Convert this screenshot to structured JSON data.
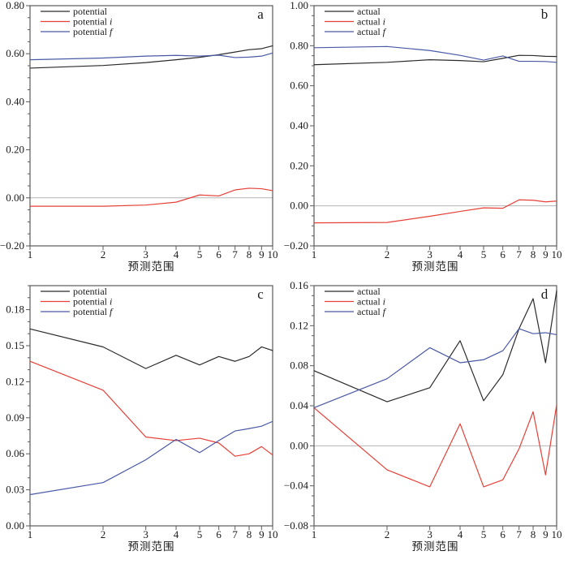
{
  "figure": {
    "xlabel": "预测范围",
    "x_tick_labels": [
      "1",
      "2",
      "3",
      "4",
      "5",
      "6",
      "7",
      "8",
      "9",
      "10"
    ]
  },
  "colors": {
    "black": "#2b2b2b",
    "red": "#e64037",
    "blue": "#4a59a6",
    "axis": "#5a5a5a",
    "tick_label": "#1a1a1a",
    "zero_line": "#b4b4b4",
    "background": "#ffffff"
  },
  "chart_data": [
    {
      "type": "line",
      "panel_label": "a",
      "xlabel": "预测范围",
      "x_scale": "log10",
      "x": [
        1,
        2,
        3,
        4,
        5,
        6,
        7,
        8,
        9,
        10
      ],
      "xlim": [
        1,
        10
      ],
      "ylim": [
        -0.2,
        0.8
      ],
      "y_major_step": 0.2,
      "y_minor_step": 0.05,
      "y_decimals": 2,
      "zero_line": true,
      "grid": false,
      "legend_position": "top-left",
      "series": [
        {
          "name": "potential",
          "color_key": "black",
          "values": [
            0.54,
            0.551,
            0.563,
            0.575,
            0.585,
            0.596,
            0.607,
            0.617,
            0.621,
            0.633
          ]
        },
        {
          "name": "potential i",
          "color_key": "red",
          "values": [
            -0.035,
            -0.035,
            -0.03,
            -0.018,
            0.012,
            0.008,
            0.033,
            0.04,
            0.038,
            0.03
          ]
        },
        {
          "name": "potential f",
          "color_key": "blue",
          "values": [
            0.575,
            0.582,
            0.59,
            0.593,
            0.59,
            0.594,
            0.584,
            0.586,
            0.59,
            0.603
          ]
        }
      ]
    },
    {
      "type": "line",
      "panel_label": "b",
      "xlabel": "预测范围",
      "x_scale": "log10",
      "x": [
        1,
        2,
        3,
        4,
        5,
        6,
        7,
        8,
        9,
        10
      ],
      "xlim": [
        1,
        10
      ],
      "ylim": [
        -0.2,
        1.0
      ],
      "y_major_step": 0.2,
      "y_minor_step": 0.05,
      "y_decimals": 2,
      "zero_line": true,
      "grid": false,
      "legend_position": "top-left",
      "series": [
        {
          "name": "actual",
          "color_key": "black",
          "values": [
            0.705,
            0.717,
            0.73,
            0.726,
            0.72,
            0.737,
            0.752,
            0.751,
            0.747,
            0.746
          ]
        },
        {
          "name": "actual i",
          "color_key": "red",
          "values": [
            -0.085,
            -0.083,
            -0.052,
            -0.028,
            -0.01,
            -0.012,
            0.03,
            0.028,
            0.02,
            0.024
          ]
        },
        {
          "name": "actual f",
          "color_key": "blue",
          "values": [
            0.79,
            0.796,
            0.776,
            0.752,
            0.728,
            0.749,
            0.722,
            0.722,
            0.721,
            0.717
          ]
        }
      ]
    },
    {
      "type": "line",
      "panel_label": "c",
      "xlabel": "预测范围",
      "x_scale": "log10",
      "x": [
        1,
        2,
        3,
        4,
        5,
        6,
        7,
        8,
        9,
        10
      ],
      "xlim": [
        1,
        10
      ],
      "ylim": [
        0.0,
        0.2
      ],
      "y_major_step": 0.03,
      "y_minor_step": 0.01,
      "y_decimals": 2,
      "zero_line": false,
      "grid": false,
      "legend_position": "top-left",
      "series": [
        {
          "name": "potential",
          "color_key": "black",
          "values": [
            0.164,
            0.149,
            0.131,
            0.142,
            0.134,
            0.141,
            0.137,
            0.141,
            0.149,
            0.146
          ]
        },
        {
          "name": "potential i",
          "color_key": "red",
          "values": [
            0.137,
            0.113,
            0.074,
            0.071,
            0.073,
            0.069,
            0.058,
            0.06,
            0.066,
            0.059
          ]
        },
        {
          "name": "potential f",
          "color_key": "blue",
          "values": [
            0.026,
            0.036,
            0.055,
            0.072,
            0.061,
            0.071,
            0.079,
            0.081,
            0.083,
            0.087
          ]
        }
      ]
    },
    {
      "type": "line",
      "panel_label": "d",
      "xlabel": "预测范围",
      "x_scale": "log10",
      "x": [
        1,
        2,
        3,
        4,
        5,
        6,
        7,
        8,
        9,
        10
      ],
      "xlim": [
        1,
        10
      ],
      "ylim": [
        -0.08,
        0.16
      ],
      "y_major_step": 0.04,
      "y_minor_step": 0.01,
      "y_decimals": 2,
      "zero_line": true,
      "grid": false,
      "legend_position": "top-left",
      "series": [
        {
          "name": "actual",
          "color_key": "black",
          "values": [
            0.075,
            0.044,
            0.058,
            0.105,
            0.045,
            0.071,
            0.117,
            0.147,
            0.083,
            0.155
          ]
        },
        {
          "name": "actual i",
          "color_key": "red",
          "values": [
            0.038,
            -0.024,
            -0.041,
            0.022,
            -0.041,
            -0.034,
            -0.003,
            0.034,
            -0.029,
            0.041
          ]
        },
        {
          "name": "actual f",
          "color_key": "blue",
          "values": [
            0.038,
            0.067,
            0.098,
            0.083,
            0.086,
            0.095,
            0.117,
            0.112,
            0.113,
            0.111
          ]
        }
      ]
    }
  ]
}
